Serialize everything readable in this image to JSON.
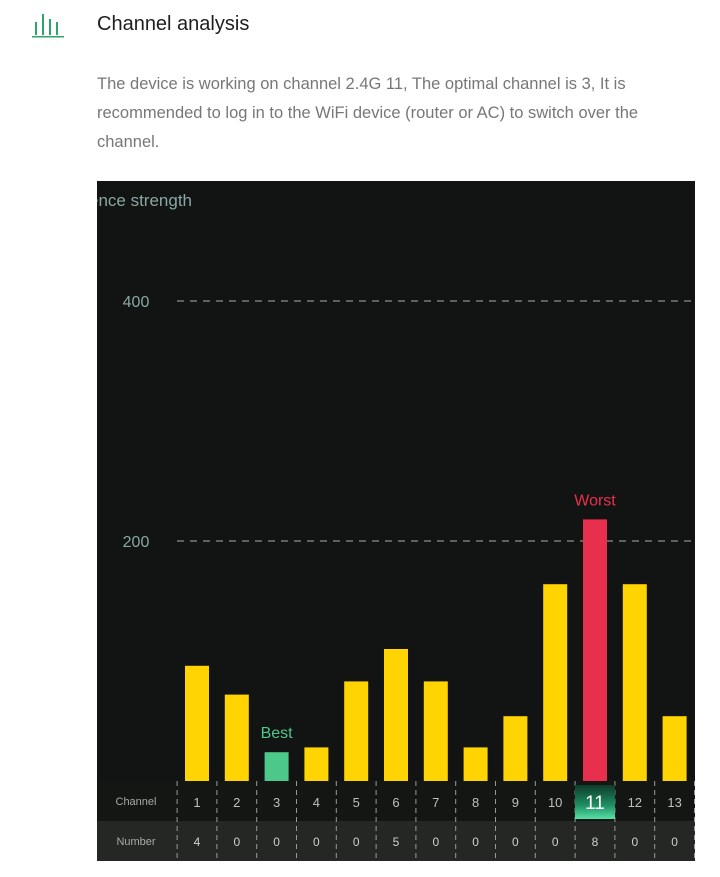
{
  "header": {
    "icon": "signal-bars-icon",
    "title": "Channel analysis"
  },
  "description": "The device is working on channel 2.4G 11, The optimal channel is 3, It is recommended to log in to the WiFi device (router or AC) to switch over the channel.",
  "colors": {
    "accent": "#2ea66a",
    "bar": "#ffd400",
    "best": "#4cc88a",
    "worst": "#e8304e",
    "chart_bg": "#111412"
  },
  "chart_data": {
    "type": "bar",
    "ylabel": "ence strength",
    "yticks": [
      200,
      400
    ],
    "ylim": [
      0,
      400
    ],
    "grid": "dashed-horizontal",
    "categories": [
      "1",
      "2",
      "3",
      "4",
      "5",
      "6",
      "7",
      "8",
      "9",
      "10",
      "11",
      "12",
      "13"
    ],
    "values": [
      96,
      72,
      24,
      28,
      83,
      110,
      83,
      28,
      54,
      164,
      218,
      164,
      54
    ],
    "best_channel": "3",
    "worst_channel": "11",
    "current_channel": "11",
    "best_label": "Best",
    "worst_label": "Worst",
    "table": {
      "row1_label": "Channel",
      "row2_label": "Number",
      "numbers": [
        "4",
        "0",
        "0",
        "0",
        "0",
        "5",
        "0",
        "0",
        "0",
        "0",
        "8",
        "0",
        "0"
      ]
    }
  }
}
